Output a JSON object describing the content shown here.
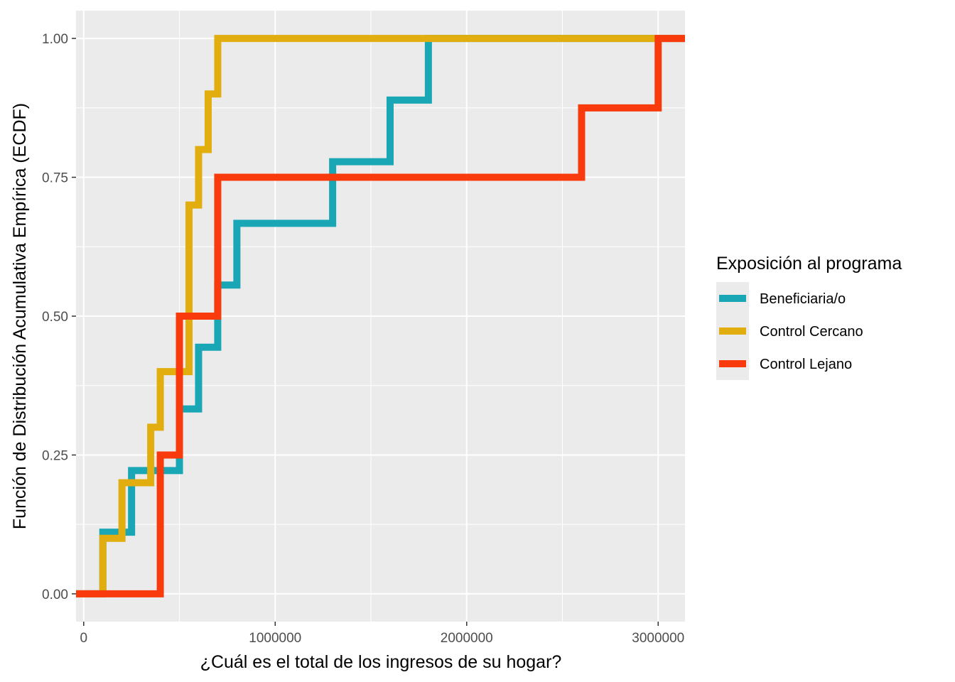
{
  "chart_data": {
    "type": "line",
    "subtype": "ecdf-step",
    "xlabel": "¿Cuál es el total de los ingresos de su hogar?",
    "ylabel": "Función de Distribución Acumulativa Empírica (ECDF)",
    "xlim": [
      -40000,
      3140000
    ],
    "ylim": [
      -0.05,
      1.05
    ],
    "x_ticks": [
      0,
      1000000,
      2000000,
      3000000
    ],
    "x_tick_labels": [
      "0",
      "1000000",
      "2000000",
      "3000000"
    ],
    "y_ticks": [
      0,
      0.25,
      0.5,
      0.75,
      1
    ],
    "y_tick_labels": [
      "0.00",
      "0.25",
      "0.50",
      "0.75",
      "1.00"
    ],
    "grid": true,
    "legend": {
      "title": "Exposición al programa",
      "position": "right"
    },
    "series": [
      {
        "name": "Beneficiaria/o",
        "color": "#1AA7B5",
        "x": [
          100000,
          250000,
          500000,
          600000,
          700000,
          800000,
          1300000,
          1600000,
          1800000
        ],
        "y": [
          0.111,
          0.222,
          0.333,
          0.444,
          0.556,
          0.667,
          0.778,
          0.889,
          1.0
        ]
      },
      {
        "name": "Control Cercano",
        "color": "#E1AD0F",
        "x": [
          100000,
          200000,
          350000,
          400000,
          550000,
          600000,
          650000,
          700000
        ],
        "y": [
          0.1,
          0.2,
          0.3,
          0.4,
          0.7,
          0.8,
          0.9,
          1.0
        ]
      },
      {
        "name": "Control Lejano",
        "color": "#F83A0C",
        "x": [
          400000,
          500000,
          700000,
          2600000,
          3000000
        ],
        "y": [
          0.25,
          0.5,
          0.75,
          0.875,
          1.0
        ]
      }
    ]
  }
}
